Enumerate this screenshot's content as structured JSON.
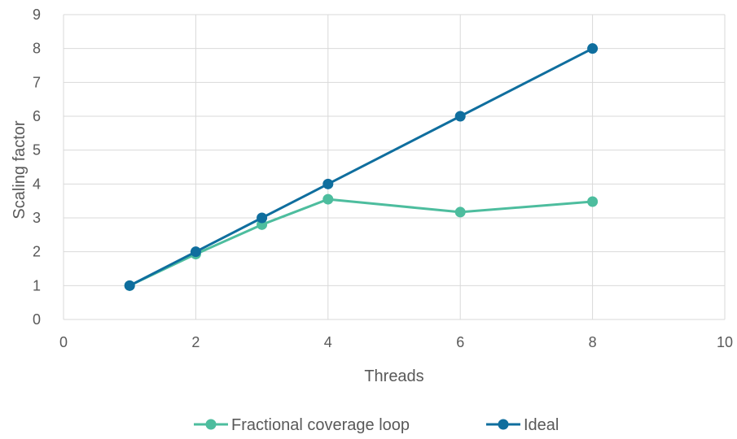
{
  "chart_data": {
    "type": "scatter",
    "mode": "lines+markers",
    "xlabel": "Threads",
    "ylabel": "Scaling factor",
    "xlim": [
      0,
      10
    ],
    "ylim": [
      0,
      9
    ],
    "xticks": [
      0,
      2,
      4,
      6,
      8,
      10
    ],
    "yticks": [
      0,
      1,
      2,
      3,
      4,
      5,
      6,
      7,
      8,
      9
    ],
    "grid": true,
    "legend_position": "bottom",
    "series": [
      {
        "name": "Fractional coverage loop",
        "color": "#4dbd9e",
        "x": [
          1,
          2,
          3,
          4,
          6,
          8
        ],
        "y": [
          1.0,
          1.93,
          2.8,
          3.55,
          3.17,
          3.48
        ]
      },
      {
        "name": "Ideal",
        "color": "#0f6e9e",
        "x": [
          1,
          2,
          3,
          4,
          6,
          8
        ],
        "y": [
          1,
          2,
          3,
          4,
          6,
          8
        ]
      }
    ]
  }
}
